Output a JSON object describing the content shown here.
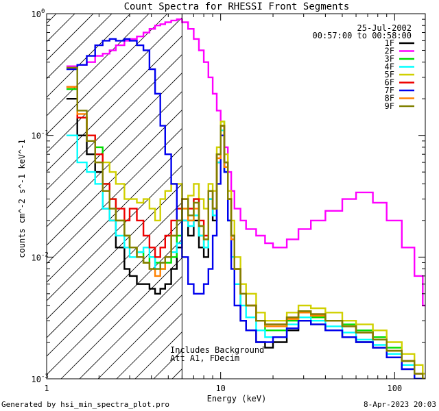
{
  "chart_data": {
    "type": "line",
    "title": "Count Spectra for RHESSI Front Segments",
    "xlabel": "Energy (keV)",
    "ylabel": "counts cm^-2 s^-1 keV^-1",
    "xscale": "log",
    "yscale": "log",
    "xlim": [
      1,
      150
    ],
    "ylim": [
      0.001,
      1.0
    ],
    "x_tick_labels": [
      "1",
      "10",
      "100"
    ],
    "y_tick_labels": [
      "10",
      "10",
      "10",
      "10"
    ],
    "y_tick_exponents": [
      "0",
      "-1",
      "-2",
      "-3"
    ],
    "date": "25-Jul-2002",
    "time_range": "00:57:00 to 00:58:00",
    "energy_cutoff_keV": 6,
    "annotation_line1": "Includes Background",
    "annotation_line2": "Att A1, FDecim",
    "series": [
      {
        "name": "1F",
        "color": "#000000",
        "x": [
          1.3,
          1.5,
          1.7,
          1.9,
          2.1,
          2.3,
          2.5,
          2.8,
          3.0,
          3.3,
          3.6,
          3.9,
          4.2,
          4.5,
          4.8,
          5.2,
          5.6,
          6.0,
          6.5,
          7.0,
          7.5,
          8.0,
          8.5,
          9.0,
          9.5,
          10.0,
          10.5,
          11.0,
          11.5,
          12.0,
          13.0,
          14.0,
          16.0,
          18.0,
          20.0,
          24.0,
          28.0,
          33.0,
          40.0,
          50.0,
          60.0,
          75.0,
          90.0,
          110.0,
          130.0,
          145.0
        ],
        "y": [
          0.2,
          0.1,
          0.07,
          0.05,
          0.025,
          0.02,
          0.012,
          0.008,
          0.007,
          0.006,
          0.006,
          0.0055,
          0.005,
          0.0055,
          0.006,
          0.008,
          0.012,
          0.02,
          0.015,
          0.02,
          0.012,
          0.01,
          0.03,
          0.02,
          0.06,
          0.12,
          0.05,
          0.02,
          0.01,
          0.006,
          0.003,
          0.0025,
          0.002,
          0.0018,
          0.002,
          0.0025,
          0.003,
          0.0028,
          0.0025,
          0.0022,
          0.002,
          0.0018,
          0.0015,
          0.0012,
          0.001,
          0.0009
        ]
      },
      {
        "name": "2F",
        "color": "#ff00ff",
        "x": [
          1.3,
          1.5,
          1.7,
          1.9,
          2.1,
          2.3,
          2.5,
          2.8,
          3.0,
          3.3,
          3.6,
          3.9,
          4.2,
          4.5,
          4.8,
          5.2,
          5.6,
          6.0,
          6.5,
          7.0,
          7.5,
          8.0,
          8.5,
          9.0,
          9.5,
          10.0,
          10.5,
          11.0,
          11.5,
          12.0,
          13.0,
          14.0,
          16.0,
          18.0,
          20.0,
          24.0,
          28.0,
          33.0,
          40.0,
          50.0,
          60.0,
          75.0,
          90.0,
          110.0,
          130.0,
          145.0
        ],
        "y": [
          0.37,
          0.38,
          0.4,
          0.45,
          0.47,
          0.5,
          0.55,
          0.6,
          0.62,
          0.65,
          0.7,
          0.75,
          0.8,
          0.82,
          0.85,
          0.88,
          0.9,
          0.85,
          0.75,
          0.62,
          0.5,
          0.4,
          0.3,
          0.22,
          0.16,
          0.12,
          0.08,
          0.05,
          0.035,
          0.025,
          0.02,
          0.017,
          0.015,
          0.013,
          0.012,
          0.014,
          0.017,
          0.02,
          0.024,
          0.03,
          0.034,
          0.028,
          0.02,
          0.012,
          0.007,
          0.004
        ]
      },
      {
        "name": "3F",
        "color": "#00dd00",
        "x": [
          1.3,
          1.5,
          1.7,
          1.9,
          2.1,
          2.3,
          2.5,
          2.8,
          3.0,
          3.3,
          3.6,
          3.9,
          4.2,
          4.5,
          4.8,
          5.2,
          5.6,
          6.0,
          6.5,
          7.0,
          7.5,
          8.0,
          8.5,
          9.0,
          9.5,
          10.0,
          10.5,
          11.0,
          11.5,
          12.0,
          13.0,
          14.0,
          16.0,
          18.0,
          20.0,
          24.0,
          28.0,
          33.0,
          40.0,
          50.0,
          60.0,
          75.0,
          90.0,
          110.0,
          130.0,
          145.0
        ],
        "y": [
          0.24,
          0.14,
          0.1,
          0.08,
          0.04,
          0.03,
          0.02,
          0.015,
          0.012,
          0.011,
          0.009,
          0.01,
          0.009,
          0.008,
          0.009,
          0.01,
          0.015,
          0.025,
          0.02,
          0.03,
          0.015,
          0.012,
          0.035,
          0.025,
          0.07,
          0.13,
          0.06,
          0.03,
          0.015,
          0.008,
          0.005,
          0.004,
          0.003,
          0.0025,
          0.0025,
          0.003,
          0.0035,
          0.0032,
          0.003,
          0.0028,
          0.0025,
          0.0022,
          0.0018,
          0.0014,
          0.0011,
          0.001
        ]
      },
      {
        "name": "4F",
        "color": "#00ffff",
        "x": [
          1.3,
          1.5,
          1.7,
          1.9,
          2.1,
          2.3,
          2.5,
          2.8,
          3.0,
          3.3,
          3.6,
          3.9,
          4.2,
          4.5,
          4.8,
          5.2,
          5.6,
          6.0,
          6.5,
          7.0,
          7.5,
          8.0,
          8.5,
          9.0,
          9.5,
          10.0,
          10.5,
          11.0,
          11.5,
          12.0,
          13.0,
          14.0,
          16.0,
          18.0,
          20.0,
          24.0,
          28.0,
          33.0,
          40.0,
          50.0,
          60.0,
          75.0,
          90.0,
          110.0,
          130.0,
          145.0
        ],
        "y": [
          0.1,
          0.06,
          0.05,
          0.04,
          0.025,
          0.02,
          0.015,
          0.012,
          0.01,
          0.011,
          0.012,
          0.01,
          0.008,
          0.009,
          0.01,
          0.011,
          0.013,
          0.02,
          0.018,
          0.022,
          0.015,
          0.012,
          0.03,
          0.022,
          0.06,
          0.11,
          0.05,
          0.02,
          0.01,
          0.006,
          0.004,
          0.0032,
          0.0025,
          0.0022,
          0.0022,
          0.0028,
          0.0032,
          0.003,
          0.0027,
          0.0024,
          0.0021,
          0.0019,
          0.0016,
          0.0013,
          0.001,
          0.0009
        ]
      },
      {
        "name": "5F",
        "color": "#d0d000",
        "x": [
          1.3,
          1.5,
          1.7,
          1.9,
          2.1,
          2.3,
          2.5,
          2.8,
          3.0,
          3.3,
          3.6,
          3.9,
          4.2,
          4.5,
          4.8,
          5.2,
          5.6,
          6.0,
          6.5,
          7.0,
          7.5,
          8.0,
          8.5,
          9.0,
          9.5,
          10.0,
          10.5,
          11.0,
          11.5,
          12.0,
          13.0,
          14.0,
          16.0,
          18.0,
          20.0,
          24.0,
          28.0,
          33.0,
          40.0,
          50.0,
          60.0,
          75.0,
          90.0,
          110.0,
          130.0,
          145.0
        ],
        "y": [
          0.25,
          0.14,
          0.1,
          0.07,
          0.06,
          0.05,
          0.04,
          0.03,
          0.03,
          0.028,
          0.03,
          0.025,
          0.02,
          0.03,
          0.035,
          0.04,
          0.04,
          0.03,
          0.032,
          0.04,
          0.03,
          0.025,
          0.04,
          0.035,
          0.08,
          0.13,
          0.07,
          0.035,
          0.02,
          0.01,
          0.006,
          0.005,
          0.0035,
          0.003,
          0.003,
          0.0035,
          0.004,
          0.0038,
          0.0035,
          0.003,
          0.0028,
          0.0025,
          0.002,
          0.0016,
          0.0013,
          0.0011
        ]
      },
      {
        "name": "6F",
        "color": "#ee0000",
        "x": [
          1.3,
          1.5,
          1.7,
          1.9,
          2.1,
          2.3,
          2.5,
          2.8,
          3.0,
          3.3,
          3.6,
          3.9,
          4.2,
          4.5,
          4.8,
          5.2,
          5.6,
          6.0,
          6.5,
          7.0,
          7.5,
          8.0,
          8.5,
          9.0,
          9.5,
          10.0,
          10.5,
          11.0,
          11.5,
          12.0,
          13.0,
          14.0,
          16.0,
          18.0,
          20.0,
          24.0,
          28.0,
          33.0,
          40.0,
          50.0,
          60.0,
          75.0,
          90.0,
          110.0,
          130.0,
          145.0
        ],
        "y": [
          0.25,
          0.14,
          0.1,
          0.07,
          0.04,
          0.03,
          0.025,
          0.02,
          0.025,
          0.02,
          0.015,
          0.012,
          0.01,
          0.012,
          0.015,
          0.02,
          0.025,
          0.03,
          0.025,
          0.03,
          0.02,
          0.015,
          0.035,
          0.025,
          0.07,
          0.12,
          0.06,
          0.03,
          0.015,
          0.008,
          0.005,
          0.004,
          0.003,
          0.0028,
          0.0028,
          0.0032,
          0.0036,
          0.0034,
          0.003,
          0.0027,
          0.0024,
          0.0021,
          0.0017,
          0.0014,
          0.0011,
          0.001
        ]
      },
      {
        "name": "7F",
        "color": "#0000ee",
        "x": [
          1.3,
          1.5,
          1.7,
          1.9,
          2.1,
          2.3,
          2.5,
          2.8,
          3.0,
          3.3,
          3.6,
          3.9,
          4.2,
          4.5,
          4.8,
          5.2,
          5.6,
          6.0,
          6.5,
          7.0,
          7.5,
          8.0,
          8.5,
          9.0,
          9.5,
          10.0,
          10.5,
          11.0,
          11.5,
          12.0,
          13.0,
          14.0,
          16.0,
          18.0,
          20.0,
          24.0,
          28.0,
          33.0,
          40.0,
          50.0,
          60.0,
          75.0,
          90.0,
          110.0,
          130.0,
          145.0
        ],
        "y": [
          0.35,
          0.38,
          0.45,
          0.55,
          0.6,
          0.62,
          0.6,
          0.62,
          0.6,
          0.55,
          0.5,
          0.35,
          0.22,
          0.12,
          0.07,
          0.04,
          0.02,
          0.01,
          0.006,
          0.005,
          0.005,
          0.006,
          0.008,
          0.015,
          0.04,
          0.1,
          0.05,
          0.02,
          0.008,
          0.004,
          0.003,
          0.0025,
          0.002,
          0.002,
          0.0022,
          0.0026,
          0.003,
          0.0028,
          0.0025,
          0.0022,
          0.002,
          0.0018,
          0.0015,
          0.0012,
          0.001,
          0.0009
        ]
      },
      {
        "name": "8F",
        "color": "#ff8000",
        "x": [
          1.3,
          1.5,
          1.7,
          1.9,
          2.1,
          2.3,
          2.5,
          2.8,
          3.0,
          3.3,
          3.6,
          3.9,
          4.2,
          4.5,
          4.8,
          5.2,
          5.6,
          6.0,
          6.5,
          7.0,
          7.5,
          8.0,
          8.5,
          9.0,
          9.5,
          10.0,
          10.5,
          11.0,
          11.5,
          12.0,
          13.0,
          14.0,
          16.0,
          18.0,
          20.0,
          24.0,
          28.0,
          33.0,
          40.0,
          50.0,
          60.0,
          75.0,
          90.0,
          110.0,
          130.0,
          145.0
        ],
        "y": [
          0.25,
          0.15,
          0.09,
          0.06,
          0.035,
          0.025,
          0.02,
          0.015,
          0.012,
          0.01,
          0.009,
          0.008,
          0.007,
          0.008,
          0.01,
          0.015,
          0.02,
          0.025,
          0.02,
          0.025,
          0.018,
          0.014,
          0.035,
          0.025,
          0.065,
          0.12,
          0.055,
          0.03,
          0.014,
          0.008,
          0.005,
          0.004,
          0.003,
          0.0027,
          0.0027,
          0.0031,
          0.0035,
          0.0033,
          0.003,
          0.0027,
          0.0024,
          0.0021,
          0.0017,
          0.0014,
          0.0011,
          0.001
        ]
      },
      {
        "name": "9F",
        "color": "#808000",
        "x": [
          1.3,
          1.5,
          1.7,
          1.9,
          2.1,
          2.3,
          2.5,
          2.8,
          3.0,
          3.3,
          3.6,
          3.9,
          4.2,
          4.5,
          4.8,
          5.2,
          5.6,
          6.0,
          6.5,
          7.0,
          7.5,
          8.0,
          8.5,
          9.0,
          9.5,
          10.0,
          10.5,
          11.0,
          11.5,
          12.0,
          13.0,
          14.0,
          16.0,
          18.0,
          20.0,
          24.0,
          28.0,
          33.0,
          40.0,
          50.0,
          60.0,
          75.0,
          90.0,
          110.0,
          130.0,
          145.0
        ],
        "y": [
          0.36,
          0.16,
          0.09,
          0.06,
          0.035,
          0.025,
          0.02,
          0.015,
          0.012,
          0.01,
          0.009,
          0.008,
          0.008,
          0.009,
          0.01,
          0.015,
          0.02,
          0.03,
          0.022,
          0.028,
          0.018,
          0.014,
          0.035,
          0.025,
          0.07,
          0.12,
          0.06,
          0.03,
          0.015,
          0.008,
          0.005,
          0.004,
          0.003,
          0.0028,
          0.0028,
          0.0032,
          0.0036,
          0.0034,
          0.003,
          0.0027,
          0.0024,
          0.0021,
          0.0017,
          0.0014,
          0.0011,
          0.001
        ]
      }
    ]
  },
  "footer": {
    "generated_by": "Generated by hsi_min_spectra_plot.pro",
    "timestamp": "8-Apr-2023 20:03"
  }
}
